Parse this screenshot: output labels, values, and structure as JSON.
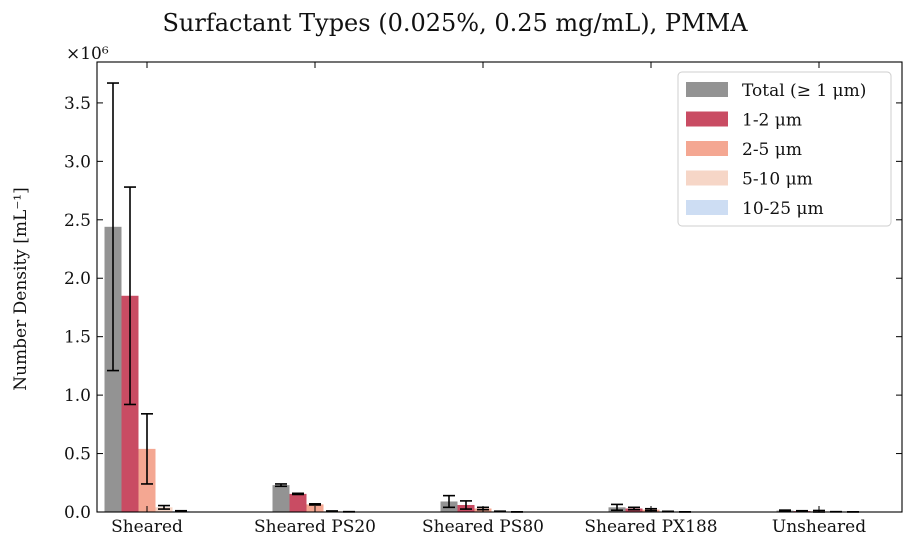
{
  "chart_data": {
    "type": "bar",
    "title": "Surfactant Types (0.025%, 0.25 mg/mL), PMMA",
    "ylabel": "Number Density [mL⁻¹]",
    "xlabel": "",
    "offset_text": "×10⁶",
    "ylim": [
      0,
      3.85
    ],
    "yticks": [
      "0.0",
      "0.5",
      "1.0",
      "1.5",
      "2.0",
      "2.5",
      "3.0",
      "3.5"
    ],
    "categories": [
      "Sheared",
      "Sheared PS20",
      "Sheared PS80",
      "Sheared PX188",
      "Unsheared"
    ],
    "legend_position": "top-right",
    "series": [
      {
        "name": "Total (≥ 1 μm)",
        "color": "#939393",
        "values": [
          2.44,
          0.23,
          0.09,
          0.04,
          0.012
        ],
        "errors": [
          1.23,
          0.01,
          0.05,
          0.025,
          0.004
        ]
      },
      {
        "name": "1-2 μm",
        "color": "#c94c63",
        "values": [
          1.85,
          0.155,
          0.06,
          0.03,
          0.008
        ],
        "errors": [
          0.93,
          0.005,
          0.035,
          0.01,
          0.003
        ]
      },
      {
        "name": "2-5 μm",
        "color": "#f4a792",
        "values": [
          0.54,
          0.065,
          0.03,
          0.02,
          0.005
        ],
        "errors": [
          0.3,
          0.005,
          0.01,
          0.008,
          0.008
        ]
      },
      {
        "name": "5-10 μm",
        "color": "#f6d6c7",
        "values": [
          0.04,
          0.007,
          0.005,
          0.004,
          0.002
        ],
        "errors": [
          0.015,
          0.002,
          0.002,
          0.002,
          0.001
        ]
      },
      {
        "name": "10-25 μm",
        "color": "#cdddf3",
        "values": [
          0.008,
          0.002,
          0.001,
          0.001,
          0.001
        ],
        "errors": [
          0.003,
          0.001,
          0.0005,
          0.0005,
          0.0005
        ]
      }
    ]
  }
}
